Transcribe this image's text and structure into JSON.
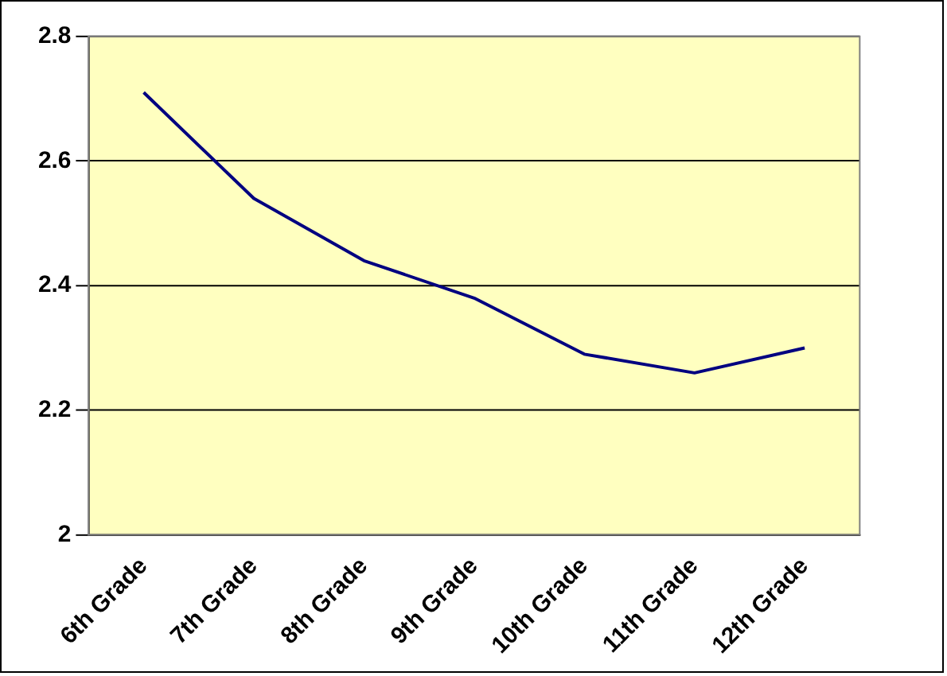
{
  "chart_data": {
    "type": "line",
    "categories": [
      "6th Grade",
      "7th Grade",
      "8th Grade",
      "9th Grade",
      "10th Grade",
      "11th Grade",
      "12th Grade"
    ],
    "series": [
      {
        "color": "#000080",
        "values": [
          2.71,
          2.54,
          2.44,
          2.38,
          2.29,
          2.26,
          2.3
        ]
      }
    ],
    "ylim": [
      2,
      2.8
    ],
    "yticks": [
      2,
      2.2,
      2.4,
      2.6,
      2.8
    ],
    "grid": "y",
    "legend": false,
    "marker": "none"
  }
}
